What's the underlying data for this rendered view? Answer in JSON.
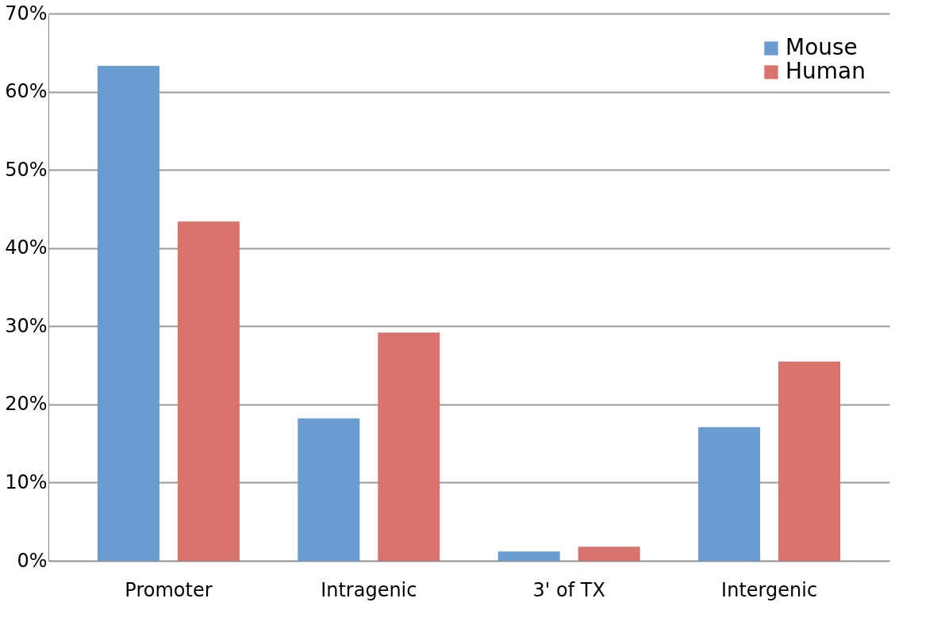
{
  "chart_data": {
    "type": "bar",
    "categories": [
      "Promoter",
      "Intragenic",
      "3' of TX",
      "Intergenic"
    ],
    "series": [
      {
        "name": "Mouse",
        "color": "#6a9bd1",
        "values": [
          63.3,
          18.2,
          1.2,
          17.1
        ]
      },
      {
        "name": "Human",
        "color": "#d9736e",
        "values": [
          43.4,
          29.2,
          1.8,
          25.5
        ]
      }
    ],
    "ylim": [
      0,
      70
    ],
    "yticks": [
      {
        "value": 0,
        "label": "0%"
      },
      {
        "value": 10,
        "label": "10%"
      },
      {
        "value": 20,
        "label": "20%"
      },
      {
        "value": 30,
        "label": "30%"
      },
      {
        "value": 40,
        "label": "40%"
      },
      {
        "value": 50,
        "label": "50%"
      },
      {
        "value": 60,
        "label": "60%"
      },
      {
        "value": 70,
        "label": "70%"
      }
    ],
    "grid": "y",
    "legend": "top right"
  }
}
